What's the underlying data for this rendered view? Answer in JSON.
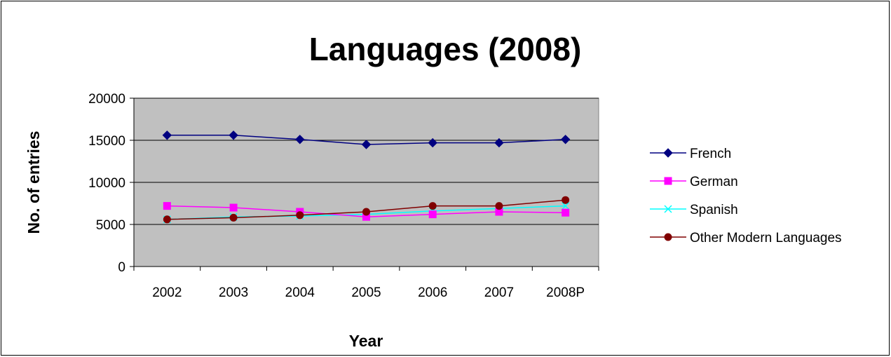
{
  "chart_data": {
    "type": "line",
    "title": "Languages (2008)",
    "xlabel": "Year",
    "ylabel": "No. of entries",
    "categories": [
      "2002",
      "2003",
      "2004",
      "2005",
      "2006",
      "2007",
      "2008P"
    ],
    "ylim": [
      0,
      20000
    ],
    "yticks": [
      0,
      5000,
      10000,
      15000,
      20000
    ],
    "grid": true,
    "plot_background": "#c0c0c0",
    "legend_position": "right",
    "series": [
      {
        "name": "French",
        "color": "#000080",
        "marker": "diamond",
        "values": [
          15600,
          15600,
          15100,
          14500,
          14700,
          14700,
          15100
        ]
      },
      {
        "name": "German",
        "color": "#ff00ff",
        "marker": "square",
        "values": [
          7200,
          7000,
          6500,
          5900,
          6200,
          6500,
          6400
        ]
      },
      {
        "name": "Spanish",
        "color": "#00ffff",
        "marker": "x",
        "values": [
          5600,
          5900,
          6000,
          6200,
          6600,
          6900,
          7200
        ]
      },
      {
        "name": "Other Modern Languages",
        "color": "#800000",
        "marker": "circle",
        "values": [
          5600,
          5800,
          6100,
          6500,
          7200,
          7200,
          7900
        ]
      }
    ]
  }
}
